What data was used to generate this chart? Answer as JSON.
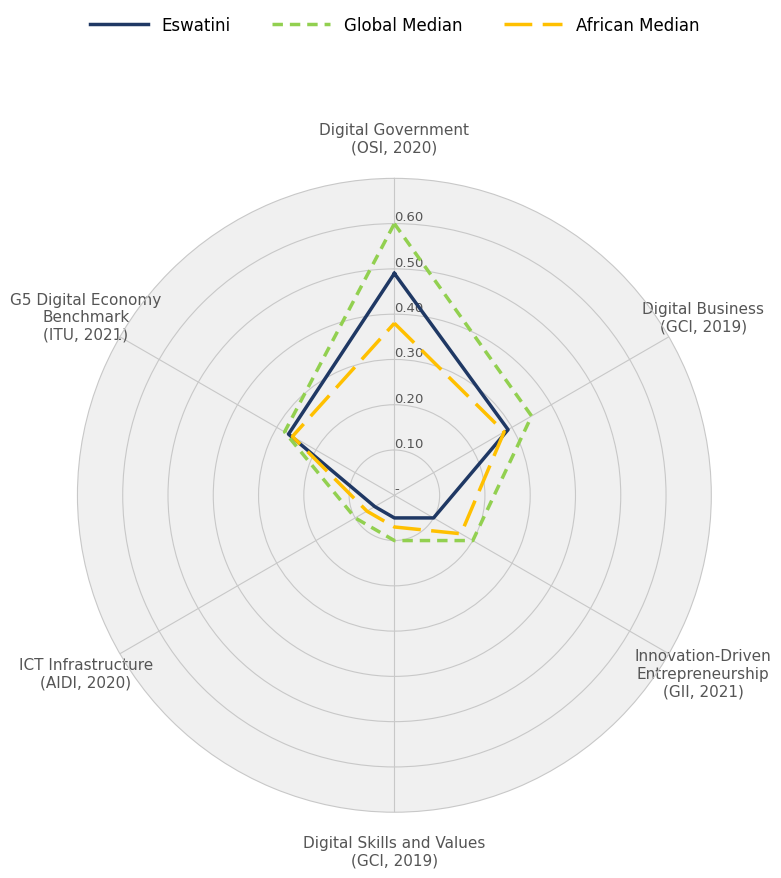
{
  "categories": [
    "Digital Government\n(OSI, 2020)",
    "Digital Business\n(GCI, 2019)",
    "Innovation-Driven\nEntrepreneurship\n(GII, 2021)",
    "Digital Skills and Values\n(GCI, 2019)",
    "ICT Infrastructure\n(AIDI, 2020)",
    "G5 Digital Economy\nBenchmark\n(ITU, 2021)"
  ],
  "series": {
    "Eswatini": [
      0.49,
      0.29,
      0.1,
      0.05,
      0.05,
      0.27
    ],
    "Global Median": [
      0.6,
      0.35,
      0.2,
      0.1,
      0.1,
      0.28
    ],
    "African Median": [
      0.38,
      0.28,
      0.17,
      0.07,
      0.07,
      0.26
    ]
  },
  "colors": {
    "Eswatini": "#1F3864",
    "Global Median": "#92D050",
    "African Median": "#FFC000"
  },
  "linewidths": {
    "Eswatini": 2.5,
    "Global Median": 2.5,
    "African Median": 2.5
  },
  "ylim": [
    0,
    0.7
  ],
  "yticks": [
    0.0,
    0.1,
    0.2,
    0.3,
    0.4,
    0.5,
    0.6
  ],
  "ytick_labels": [
    "-",
    "0.10",
    "0.20",
    "0.30",
    "0.40",
    "0.50",
    "0.60"
  ],
  "figure_background": "#FFFFFF",
  "radar_background": "#F0F0F0",
  "grid_color": "#C8C8C8",
  "label_color": "#555555",
  "label_fontsize": 11,
  "tick_fontsize": 9.5,
  "legend_fontsize": 12
}
